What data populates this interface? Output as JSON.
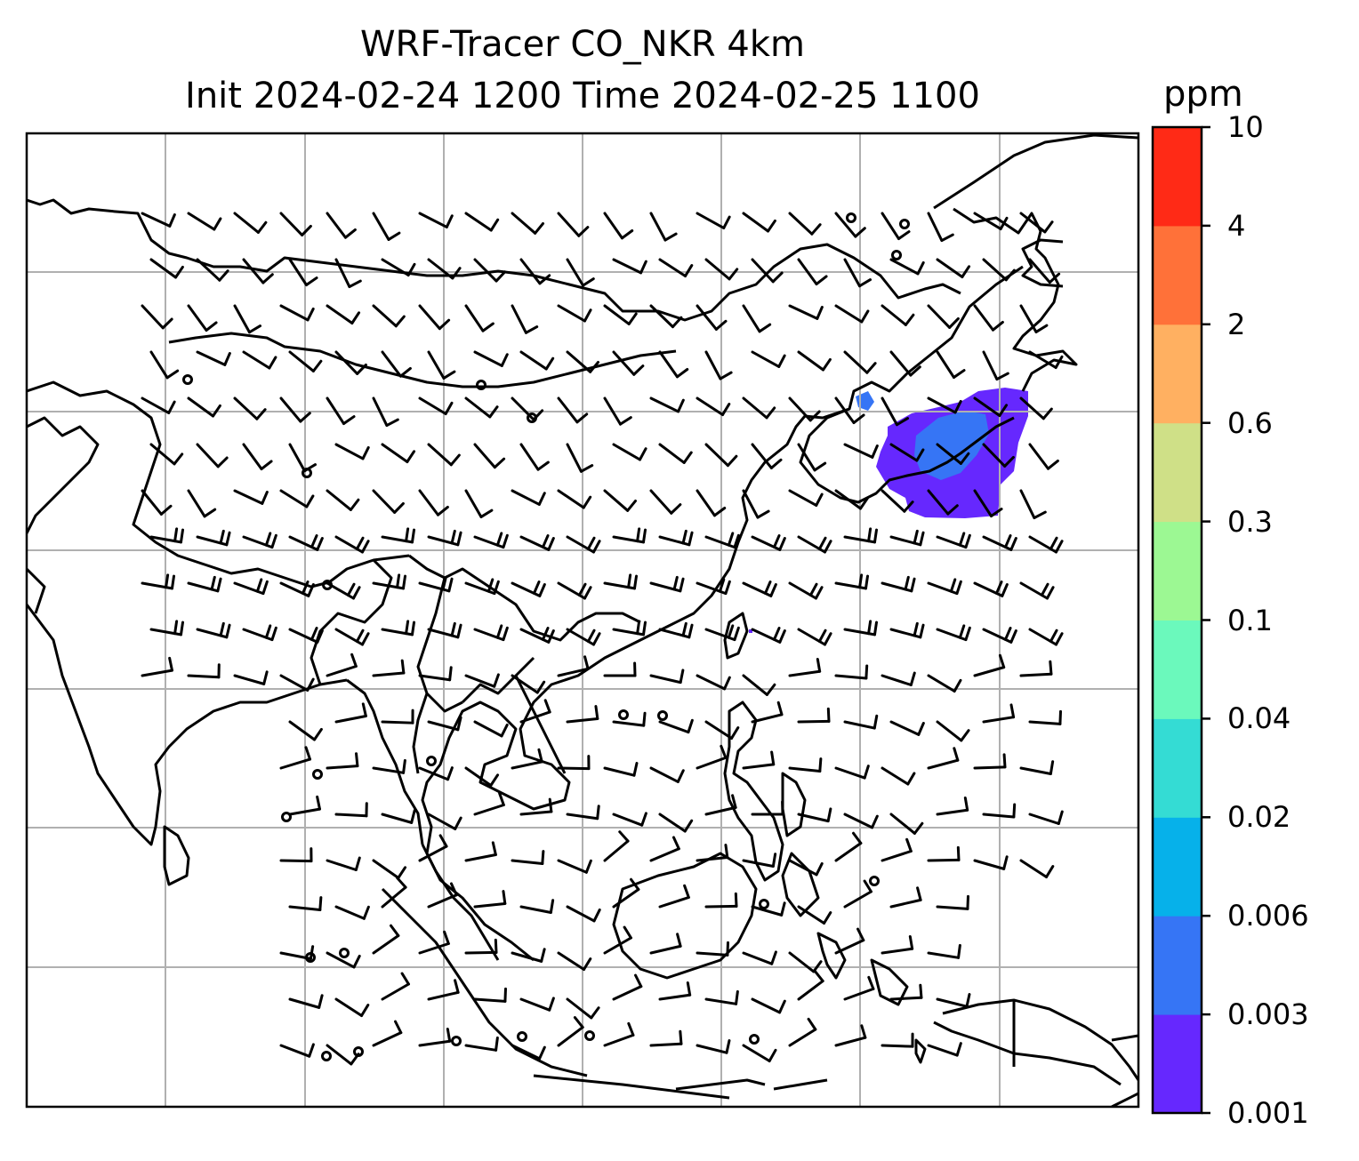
{
  "title": {
    "line1": "WRF-Tracer CO_NKR 4km",
    "line2": "Init 2024-02-24 1200 Time 2024-02-25 1100"
  },
  "colorbar": {
    "unit": "ppm",
    "levels": [
      "0.001",
      "0.003",
      "0.006",
      "0.02",
      "0.04",
      "0.1",
      "0.3",
      "0.6",
      "2",
      "4",
      "10"
    ],
    "colors": [
      "#6628fe",
      "#3675f5",
      "#06b1ea",
      "#34dcd4",
      "#6bf9bc",
      "#9cf893",
      "#cfe087",
      "#ffb061",
      "#ff7139",
      "#ff2a16"
    ]
  },
  "map": {
    "grid_color": "#b0b0b0",
    "coastline_color": "#000000",
    "plume_colors": {
      "low": "#6628fe",
      "mid": "#3675f5"
    }
  },
  "icons": [
    "wind-barb-icon",
    "calm-wind-circle-icon"
  ]
}
